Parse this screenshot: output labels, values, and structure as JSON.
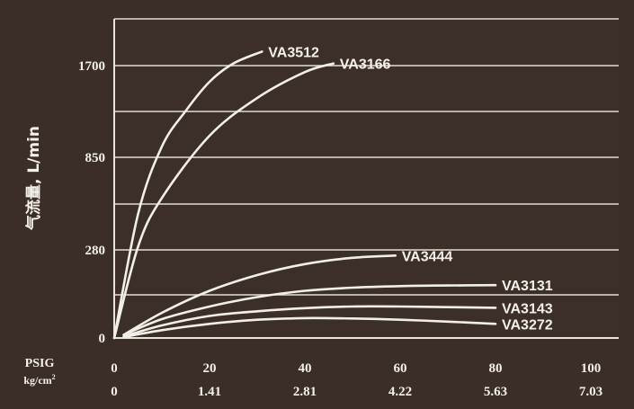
{
  "chart_data": {
    "type": "line",
    "title": "",
    "ylabel": "气流量, L/min",
    "x_axis": {
      "unit_primary": "PSIG",
      "unit_secondary_base": "kg/cm",
      "unit_secondary_sup": "2",
      "ticks_psig": [
        "0",
        "20",
        "40",
        "60",
        "80",
        "100"
      ],
      "ticks_kgcm2": [
        "0",
        "1.41",
        "2.81",
        "4.22",
        "5.63",
        "7.03"
      ],
      "xlim": [
        0,
        100
      ]
    },
    "y_axis": {
      "ticks": [
        "0",
        "280",
        "850",
        "1700"
      ],
      "scale": "nonlinear"
    },
    "grid": true,
    "series": [
      {
        "name": "VA3512",
        "x": [
          0,
          5,
          10,
          15,
          20,
          25,
          31
        ],
        "y": [
          0,
          500,
          950,
          1280,
          1550,
          1720,
          1830
        ]
      },
      {
        "name": "VA3166",
        "x": [
          0,
          5,
          10,
          20,
          30,
          40,
          46
        ],
        "y": [
          0,
          300,
          600,
          1050,
          1400,
          1640,
          1720
        ]
      },
      {
        "name": "VA3444",
        "x": [
          2,
          10,
          20,
          30,
          40,
          50,
          59
        ],
        "y": [
          10,
          80,
          150,
          200,
          235,
          255,
          262
        ]
      },
      {
        "name": "VA3131",
        "x": [
          2,
          10,
          20,
          30,
          40,
          50,
          60,
          70,
          80
        ],
        "y": [
          10,
          60,
          100,
          130,
          150,
          160,
          165,
          167,
          168
        ]
      },
      {
        "name": "VA3143",
        "x": [
          2,
          10,
          20,
          30,
          40,
          50,
          60,
          70,
          80
        ],
        "y": [
          5,
          40,
          70,
          85,
          95,
          100,
          100,
          98,
          96
        ]
      },
      {
        "name": "VA3272",
        "x": [
          2,
          10,
          20,
          30,
          40,
          50,
          60,
          70,
          80
        ],
        "y": [
          3,
          25,
          45,
          58,
          63,
          62,
          58,
          52,
          45
        ]
      }
    ]
  }
}
